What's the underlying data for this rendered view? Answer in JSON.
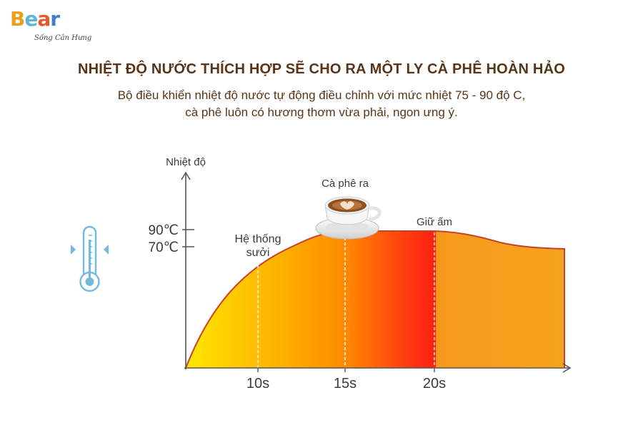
{
  "logo": {
    "brand": "Bear",
    "tagline": "Sống Cân Hưng"
  },
  "title": "NHIỆT ĐỘ NƯỚC THÍCH HỢP SẼ CHO RA MỘT LY CÀ PHÊ HOÀN HẢO",
  "subtitle": {
    "line1": "Bộ điều khiển nhiệt độ nước tự động điều chỉnh với mức nhiệt 75 - 90 độ C,",
    "line2": "cà phê luôn có hương thơm vừa phải, ngon ưng ý."
  },
  "diagram": {
    "y_axis_label": "Nhiệt độ",
    "y_ticks": [
      "90℃",
      "70℃"
    ],
    "x_ticks": [
      "10s",
      "15s",
      "20s"
    ],
    "stage_heating_line1": "Hệ thống",
    "stage_heating_line2": "sưởi",
    "stage_brew": "Cà phê ra",
    "stage_keep_warm": "Giữ ấm",
    "icon": "thermometer-icon",
    "colors": {
      "curve": "#c8412b",
      "fill_start": "#ffe600",
      "fill_mid": "#ff9a00",
      "fill_peak": "#ff1f10",
      "fill_end": "#f5a21e",
      "thermometer": "#74b9e0",
      "title": "#5a3418"
    }
  }
}
